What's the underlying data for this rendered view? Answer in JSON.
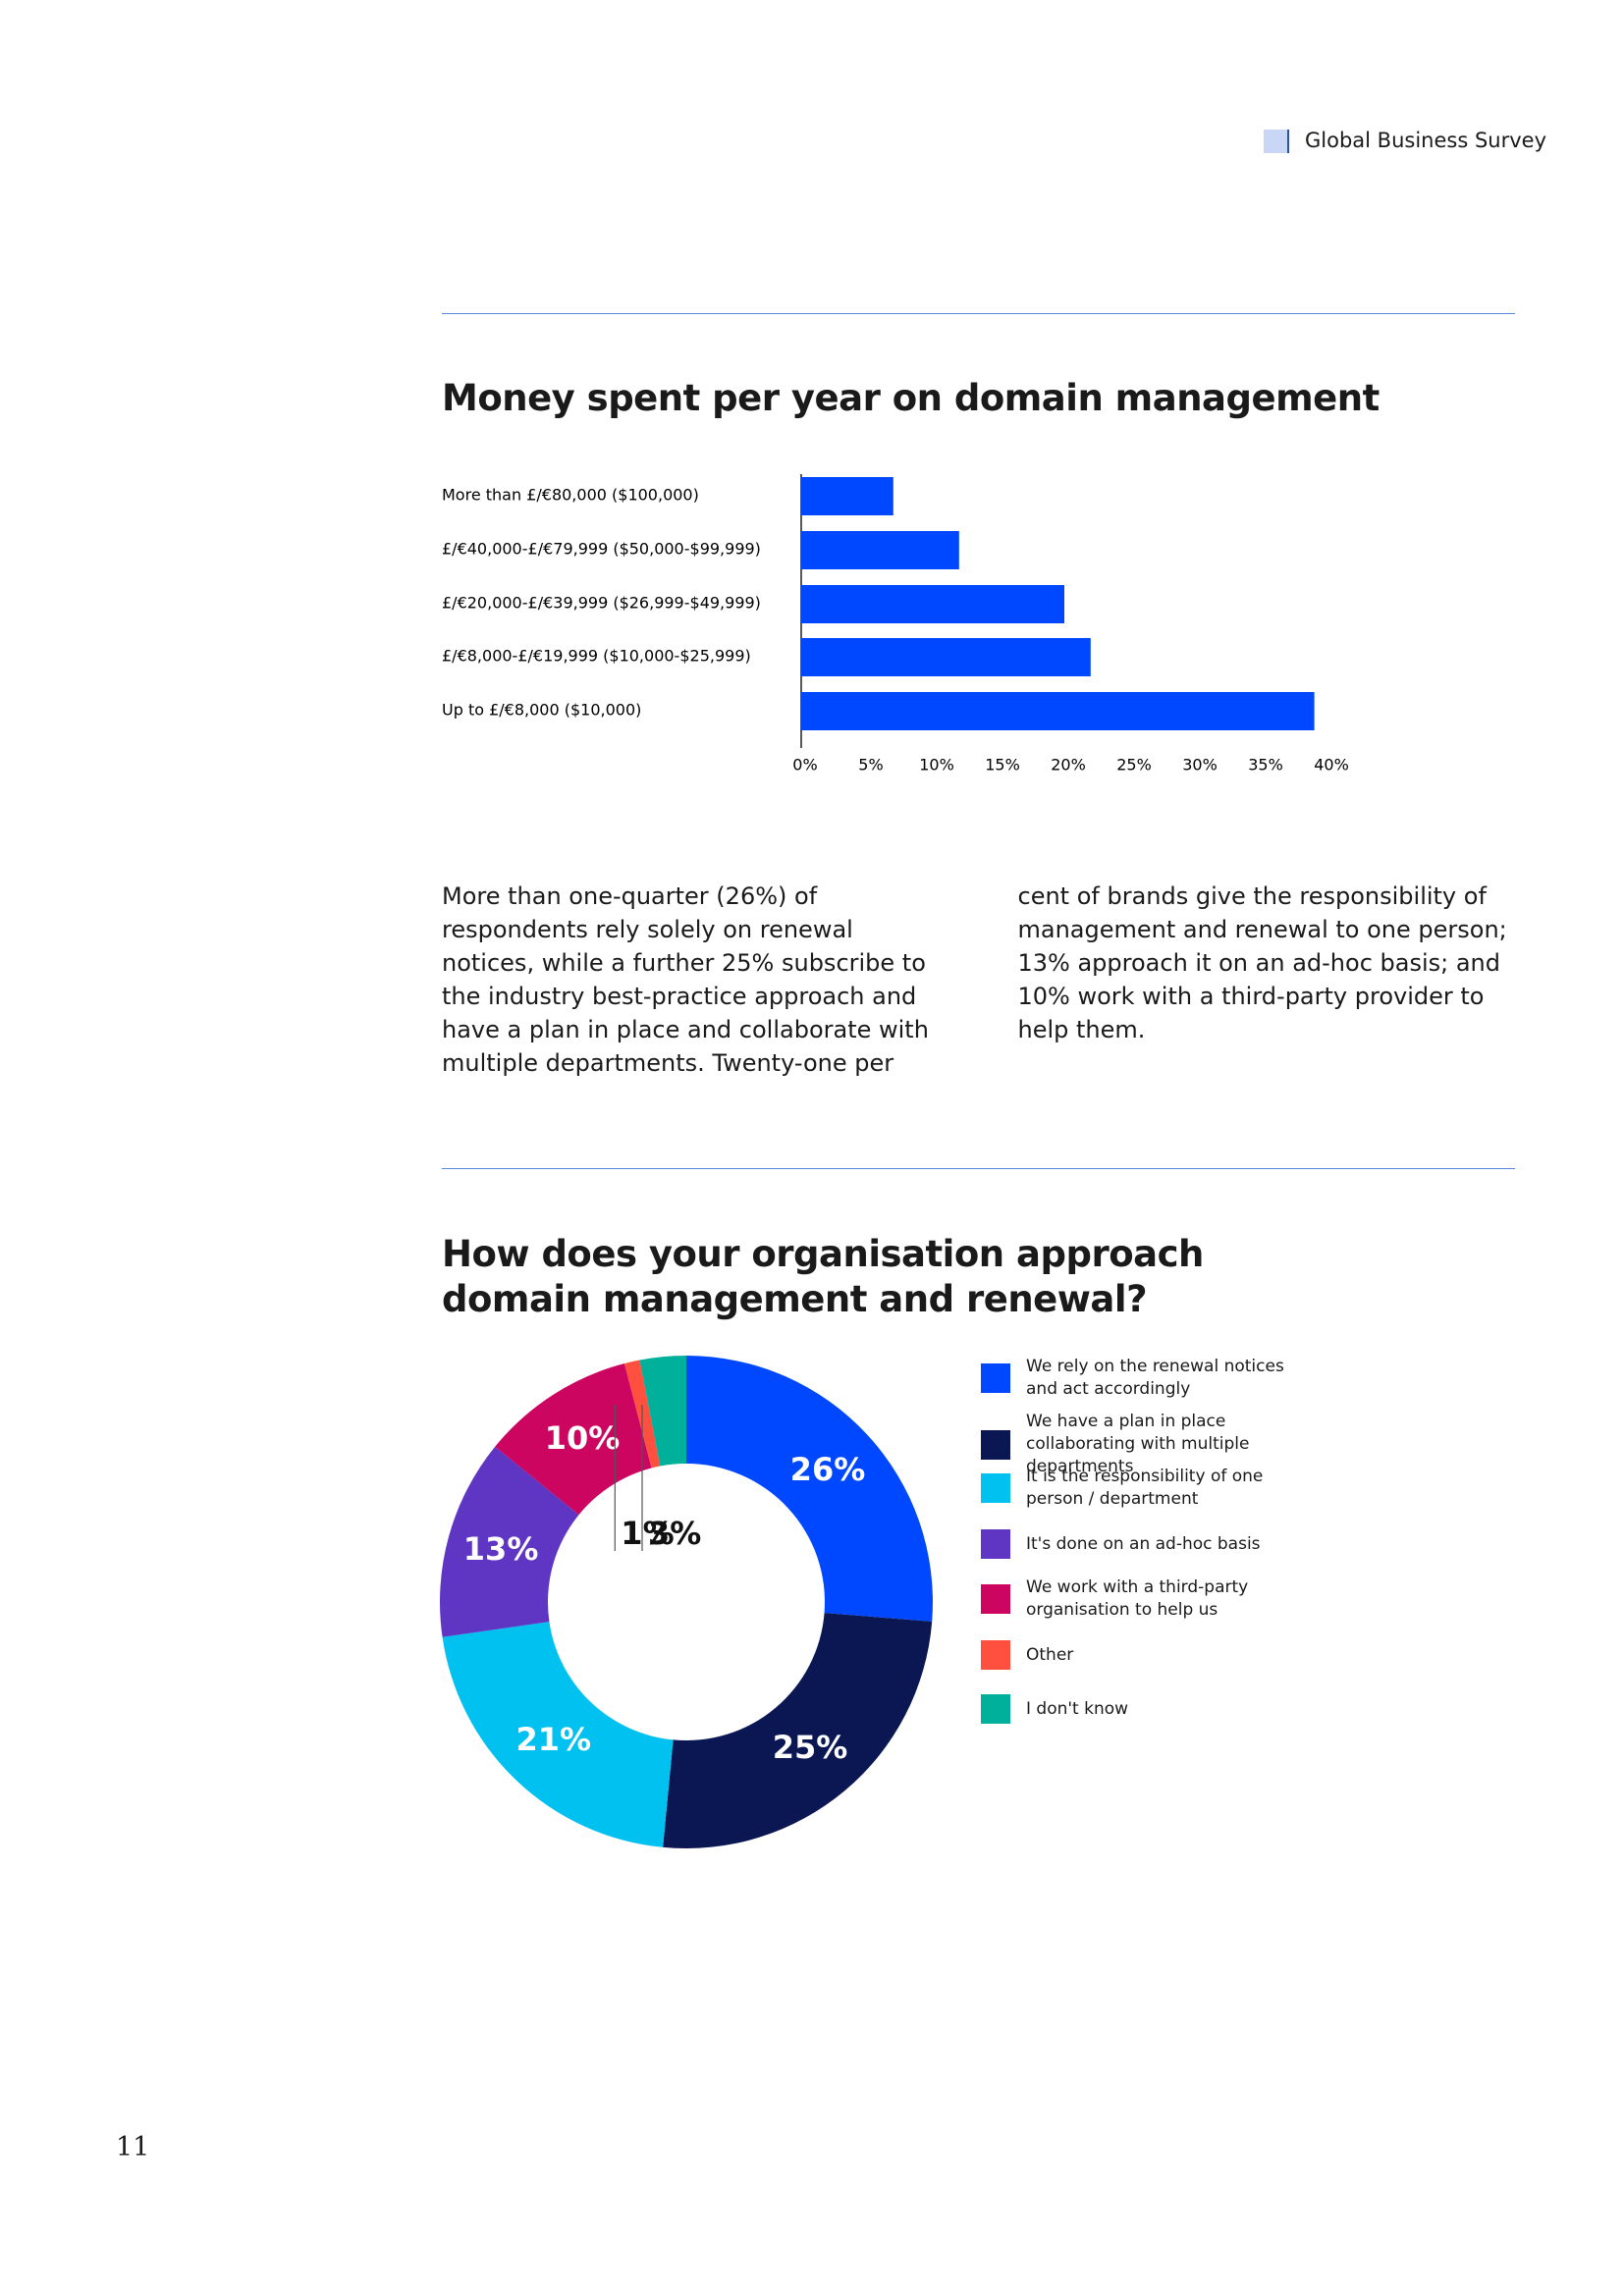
{
  "header": {
    "title": "Global Business Survey"
  },
  "body": "More than one-quarter (26%) of respondents rely solely on renewal notices, while a further 25% subscribe to the industry best-practice approach and have a plan in place and collaborate with multiple departments. Twenty-one per cent of brands give the responsibility of management and renewal to one person; 13% approach it on an ad-hoc basis; and 10% work with a third-party provider to help them.",
  "page_number": "11",
  "chart_data": [
    {
      "type": "hbar",
      "title": "Money spent per year on domain management",
      "categories": [
        "More than £/€80,000 ($100,000)",
        "£/€40,000-£/€79,999 ($50,000-$99,999)",
        "£/€20,000-£/€39,999 ($26,999-$49,999)",
        "£/€8,000-£/€19,999 ($10,000-$25,999)",
        "Up to £/€8,000 ($10,000)"
      ],
      "values": [
        7,
        12,
        20,
        22,
        39
      ],
      "color": "#0048ff",
      "xlim": [
        0,
        40
      ],
      "xticks": [
        {
          "value": 0,
          "label": "0%"
        },
        {
          "value": 5,
          "label": "5%"
        },
        {
          "value": 10,
          "label": "10%"
        },
        {
          "value": 15,
          "label": "15%"
        },
        {
          "value": 20,
          "label": "20%"
        },
        {
          "value": 25,
          "label": "25%"
        },
        {
          "value": 30,
          "label": "30%"
        },
        {
          "value": 35,
          "label": "35%"
        },
        {
          "value": 40,
          "label": "40%"
        }
      ]
    },
    {
      "type": "donut",
      "title": "How does your organisation approach domain management and renewal?",
      "categories": [
        "We rely on the renewal notices and act accordingly",
        "We have a plan in place collaborating with multiple departments",
        "It is the responsibility of one person / department",
        "It's done on an ad-hoc basis",
        "We work with a third-party organisation to help us",
        "Other",
        "I don't know"
      ],
      "values": [
        26,
        25,
        21,
        13,
        10,
        1,
        3
      ],
      "value_labels": [
        "26%",
        "25%",
        "21%",
        "13%",
        "10%",
        "1%",
        "3%"
      ],
      "colors": [
        "#0048ff",
        "#0b1753",
        "#00c1ef",
        "#5f35c3",
        "#cc0660",
        "#ff4f3f",
        "#00b09b"
      ]
    }
  ]
}
